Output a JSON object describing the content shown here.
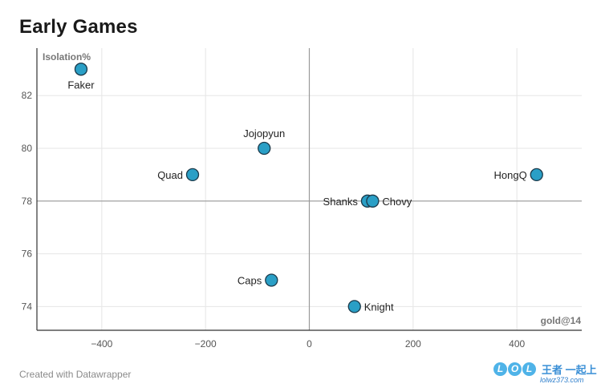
{
  "title": "Early Games",
  "footer": "Created with Datawrapper",
  "watermark": {
    "letters": [
      "L",
      "O",
      "L"
    ],
    "brand": "王者 一起上",
    "url": "lolwz373.com"
  },
  "colors": {
    "point_fill": "#2a9fc6",
    "point_stroke": "#1b3a4b",
    "grid": "#e6e6e6",
    "axis": "#333333",
    "zero_line": "#9a9a9a"
  },
  "chart_data": {
    "type": "scatter",
    "title": "Early Games",
    "xlabel": "gold@14",
    "ylabel": "Isolation%",
    "xlim": [
      -525,
      525
    ],
    "ylim": [
      73.1,
      83.8
    ],
    "xticks": [
      -400,
      -200,
      0,
      200,
      400
    ],
    "xtick_labels": [
      "−400",
      "−200",
      "0",
      "200",
      "400"
    ],
    "yticks": [
      74,
      76,
      78,
      80,
      82
    ],
    "ref_lines": {
      "x": 0,
      "y": 78
    },
    "points": [
      {
        "name": "Faker",
        "x": -440,
        "y": 83,
        "label_pos": "below"
      },
      {
        "name": "Jojopyun",
        "x": -87,
        "y": 80,
        "label_pos": "above"
      },
      {
        "name": "Quad",
        "x": -225,
        "y": 79,
        "label_pos": "left"
      },
      {
        "name": "Shanks",
        "x": 112,
        "y": 78,
        "label_pos": "left"
      },
      {
        "name": "Chovy",
        "x": 122,
        "y": 78,
        "label_pos": "right"
      },
      {
        "name": "HongQ",
        "x": 438,
        "y": 79,
        "label_pos": "left"
      },
      {
        "name": "Caps",
        "x": -73,
        "y": 75,
        "label_pos": "left"
      },
      {
        "name": "Knight",
        "x": 87,
        "y": 74,
        "label_pos": "right"
      }
    ]
  }
}
